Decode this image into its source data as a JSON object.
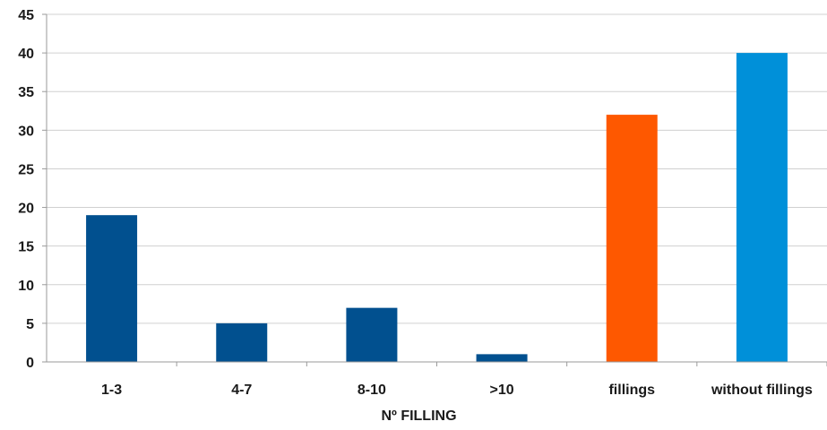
{
  "chart_data": {
    "type": "bar",
    "title": "",
    "xlabel": "Nº FILLING",
    "ylabel": "",
    "ylim": [
      0,
      45
    ],
    "yticks": [
      0,
      5,
      10,
      15,
      20,
      25,
      30,
      35,
      40,
      45
    ],
    "grid": true,
    "legend": "none",
    "categories": [
      "1-3",
      "4-7",
      "8-10",
      ">10",
      "fillings",
      "without fillings"
    ],
    "values": [
      19,
      5,
      7,
      1,
      32,
      40
    ],
    "colors": [
      "#01508f",
      "#01508f",
      "#01508f",
      "#01508f",
      "#fe5800",
      "#0090d9"
    ],
    "grid_color": "#d0d0d0",
    "axis_color": "#9a9a9a"
  }
}
